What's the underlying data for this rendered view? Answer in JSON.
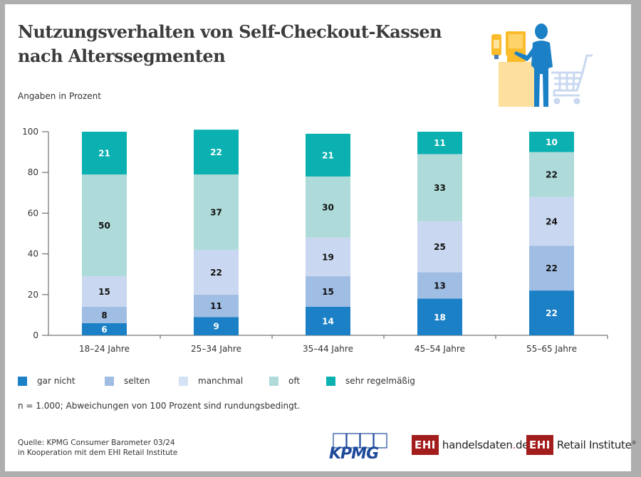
{
  "header": {
    "title_line1": "Nutzungsverhalten von Self-Checkout-Kassen",
    "title_line2": "nach Alterssegmenten",
    "subtitle": "Angaben in Prozent"
  },
  "illustration": "self-checkout-person-with-cart",
  "chart_data": {
    "type": "bar",
    "stacked": true,
    "title": "Nutzungsverhalten von Self-Checkout-Kassen nach Alterssegmenten",
    "ylabel": "Angaben in Prozent",
    "xlabel": "",
    "ylim": [
      0,
      100
    ],
    "yticks": [
      0,
      20,
      40,
      60,
      80,
      100
    ],
    "grid": false,
    "legend_position": "bottom",
    "categories": [
      "18–24 Jahre",
      "25–34 Jahre",
      "35–44 Jahre",
      "45–54 Jahre",
      "55–65 Jahre"
    ],
    "series": [
      {
        "name": "gar nicht",
        "color": "#1b80c6",
        "label_color": "#ffffff",
        "values": [
          6,
          9,
          14,
          18,
          22
        ]
      },
      {
        "name": "selten",
        "color": "#a0bde3",
        "label_color": "#111111",
        "values": [
          8,
          11,
          15,
          13,
          22
        ]
      },
      {
        "name": "manchmal",
        "color": "#c9d8f0",
        "label_color": "#111111",
        "values": [
          15,
          22,
          19,
          25,
          24
        ]
      },
      {
        "name": "oft",
        "color": "#aedad9",
        "label_color": "#111111",
        "values": [
          50,
          37,
          30,
          33,
          22
        ]
      },
      {
        "name": "sehr regelmäßig",
        "color": "#0bb0b1",
        "label_color": "#ffffff",
        "values": [
          21,
          22,
          21,
          11,
          10
        ]
      }
    ]
  },
  "legend": [
    {
      "label": "gar nicht",
      "color": "#1b80c6"
    },
    {
      "label": "selten",
      "color": "#a0bde3"
    },
    {
      "label": "manchmal",
      "color": "#d3e2f5"
    },
    {
      "label": "oft",
      "color": "#aedad9"
    },
    {
      "label": "sehr regelmäßig",
      "color": "#0bb0b1"
    }
  ],
  "footnote": "n = 1.000; Abweichungen von 100 Prozent sind rundungsbedingt.",
  "source": {
    "line1": "Quelle: KPMG Consumer Barometer 03/24",
    "line2": "in Kooperation mit dem EHI Retail Institute"
  },
  "logos": {
    "kpmg": "KPMG",
    "ehi_badge": "EHI",
    "handelsdaten_name": "handelsdaten",
    "handelsdaten_dot": ".",
    "handelsdaten_tld": "de",
    "retail_institute": "Retail Institute",
    "registered": "®"
  }
}
